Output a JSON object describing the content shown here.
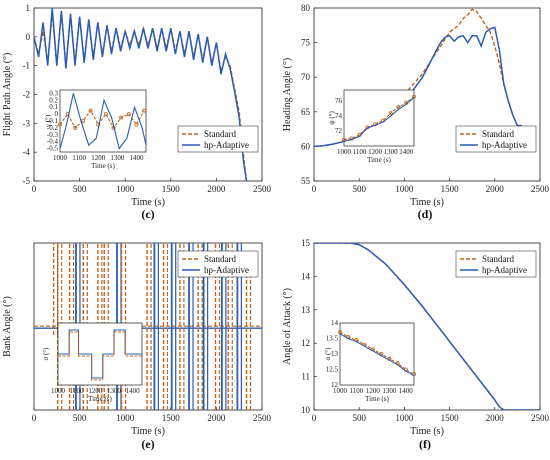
{
  "chart_data": [
    {
      "panel": "(c)",
      "type": "line",
      "xlabel": "Time (s)",
      "ylabel": "Flight Path Angle (°)",
      "xlim": [
        0,
        2500
      ],
      "ylim": [
        -5,
        1
      ],
      "xticks": [
        0,
        500,
        1000,
        1500,
        2000,
        2500
      ],
      "yticks": [
        -5,
        -4,
        -3,
        -2,
        -1,
        0,
        1
      ],
      "legend": "center-right",
      "series": [
        {
          "name": "Standard",
          "color": "#c0651a",
          "style": "dashed",
          "x": [
            0,
            50,
            100,
            150,
            200,
            250,
            300,
            350,
            400,
            450,
            500,
            550,
            600,
            650,
            700,
            750,
            800,
            850,
            900,
            950,
            1000,
            1050,
            1100,
            1150,
            1200,
            1250,
            1300,
            1350,
            1400,
            1450,
            1500,
            1550,
            1600,
            1650,
            1700,
            1750,
            1800,
            1850,
            1900,
            1950,
            2000,
            2050,
            2100,
            2150,
            2200,
            2250,
            2280,
            2300,
            2330
          ],
          "y": [
            0,
            -0.6,
            0.2,
            -0.9,
            0.8,
            -1.0,
            0.9,
            -1.0,
            0.8,
            -0.9,
            0.7,
            -0.8,
            0.6,
            -0.7,
            0.5,
            -0.6,
            0.4,
            -0.5,
            0.3,
            -0.4,
            0.2,
            -0.3,
            0.2,
            -0.3,
            0.3,
            -0.3,
            0.3,
            -0.4,
            0.3,
            -0.4,
            0.3,
            -0.5,
            0.2,
            -0.6,
            0.2,
            -0.7,
            0.1,
            -0.8,
            0.0,
            -0.9,
            -0.2,
            -1.2,
            -0.7,
            -1.0,
            -1.8,
            -2.6,
            -3.6,
            -4.2,
            -5.0
          ]
        },
        {
          "name": "hp-Adaptive",
          "color": "#2b5cb8",
          "style": "solid",
          "x": [
            0,
            50,
            100,
            150,
            200,
            250,
            300,
            350,
            400,
            450,
            500,
            550,
            600,
            650,
            700,
            750,
            800,
            850,
            900,
            950,
            1000,
            1050,
            1100,
            1150,
            1200,
            1250,
            1300,
            1350,
            1400,
            1450,
            1500,
            1550,
            1600,
            1650,
            1700,
            1750,
            1800,
            1850,
            1900,
            1950,
            2000,
            2050,
            2100,
            2150,
            2200,
            2250,
            2280,
            2300,
            2330
          ],
          "y": [
            0,
            -0.7,
            0.5,
            -1.0,
            1.0,
            -1.0,
            0.9,
            -1.1,
            0.8,
            -1.0,
            0.7,
            -0.9,
            0.6,
            -0.8,
            0.5,
            -0.7,
            0.4,
            -0.6,
            0.3,
            -0.5,
            0.2,
            -0.4,
            0.2,
            -0.4,
            0.3,
            -0.4,
            0.3,
            -0.5,
            0.3,
            -0.5,
            0.3,
            -0.6,
            0.2,
            -0.7,
            0.2,
            -0.8,
            0.1,
            -0.9,
            0.0,
            -1.0,
            -0.2,
            -1.3,
            -0.6,
            -1.1,
            -1.9,
            -2.8,
            -3.8,
            -4.4,
            -5.0
          ]
        }
      ],
      "inset": {
        "xlabel": "Time (s)",
        "ylabel": "γ (°)",
        "xlim": [
          1000,
          1450
        ],
        "ylim": [
          -0.55,
          0.35
        ],
        "xticks": [
          1000,
          1100,
          1200,
          1300,
          1400
        ],
        "yticks": [
          -0.5,
          -0.4,
          -0.3,
          -0.2,
          -0.1,
          0,
          0.1,
          0.2,
          0.3
        ],
        "standard": {
          "x": [
            1000,
            1040,
            1080,
            1120,
            1160,
            1200,
            1240,
            1280,
            1320,
            1360,
            1400,
            1440
          ],
          "y": [
            -0.15,
            0.0,
            -0.2,
            -0.1,
            0.05,
            -0.15,
            0.0,
            -0.2,
            -0.05,
            0.0,
            -0.15,
            0.05
          ]
        },
        "adaptive": {
          "x": [
            1000,
            1030,
            1070,
            1110,
            1150,
            1190,
            1230,
            1270,
            1310,
            1350,
            1390,
            1430,
            1450
          ],
          "y": [
            -0.5,
            -0.2,
            0.3,
            -0.1,
            -0.45,
            -0.35,
            0.2,
            -0.05,
            -0.5,
            -0.35,
            0.1,
            -0.2,
            -0.45
          ]
        }
      }
    },
    {
      "panel": "(d)",
      "type": "line",
      "xlabel": "Time (s)",
      "ylabel": "Heading Angle (°)",
      "xlim": [
        0,
        2500
      ],
      "ylim": [
        55,
        80
      ],
      "xticks": [
        0,
        500,
        1000,
        1500,
        2000,
        2500
      ],
      "yticks": [
        55,
        60,
        65,
        70,
        75,
        80
      ],
      "legend": "center-right",
      "series": [
        {
          "name": "Standard",
          "color": "#c0651a",
          "style": "dashed",
          "x": [
            0,
            100,
            200,
            300,
            400,
            500,
            600,
            700,
            800,
            900,
            1000,
            1100,
            1200,
            1300,
            1400,
            1450,
            1500,
            1550,
            1600,
            1650,
            1700,
            1750,
            1800,
            1850,
            1900,
            1950,
            2000,
            2050,
            2100,
            2150,
            2200,
            2250,
            2280,
            2300
          ],
          "y": [
            60,
            60.1,
            60.3,
            60.6,
            61,
            61.5,
            62.2,
            63.2,
            64.5,
            66,
            67.5,
            69,
            70.5,
            72.5,
            74.5,
            75.5,
            76.5,
            77,
            77.5,
            78.5,
            79,
            79.8,
            79.5,
            78.5,
            77.5,
            76.5,
            74.5,
            72,
            69,
            66.5,
            64.5,
            63,
            62.5,
            62.5
          ]
        },
        {
          "name": "hp-Adaptive",
          "color": "#2b5cb8",
          "style": "solid",
          "x": [
            0,
            100,
            200,
            300,
            400,
            500,
            600,
            700,
            800,
            900,
            1000,
            1100,
            1200,
            1300,
            1350,
            1400,
            1450,
            1500,
            1550,
            1600,
            1650,
            1700,
            1750,
            1800,
            1850,
            1900,
            1950,
            2000,
            2050,
            2100,
            2150,
            2200,
            2250,
            2280,
            2300
          ],
          "y": [
            60,
            60.1,
            60.3,
            60.6,
            61,
            61.5,
            62.2,
            63.2,
            64.5,
            66,
            67,
            68.2,
            70,
            72.5,
            73.8,
            75,
            75.8,
            76,
            75.2,
            75.8,
            76,
            75,
            76,
            76,
            74.5,
            76.5,
            77,
            77.2,
            74,
            69,
            66.5,
            64.5,
            63,
            63,
            63
          ]
        }
      ],
      "inset": {
        "xlabel": "Time (s)",
        "ylabel": "ψ (°)",
        "xlim": [
          1000,
          1450
        ],
        "ylim": [
          70,
          77.5
        ],
        "xticks": [
          1000,
          1100,
          1200,
          1300,
          1400
        ],
        "yticks": [
          72,
          74,
          76
        ],
        "standard": {
          "x": [
            1000,
            1050,
            1100,
            1150,
            1200,
            1250,
            1300,
            1350,
            1400,
            1450
          ],
          "y": [
            70.8,
            71.0,
            71.5,
            72.5,
            72.9,
            73.4,
            74.4,
            75.2,
            75.8,
            76.6
          ]
        },
        "adaptive": {
          "x": [
            1000,
            1050,
            1100,
            1150,
            1200,
            1250,
            1300,
            1350,
            1400,
            1450
          ],
          "y": [
            70.6,
            70.9,
            71.3,
            72.4,
            72.8,
            73.2,
            74.0,
            74.9,
            75.6,
            76.5
          ]
        }
      }
    },
    {
      "panel": "(e)",
      "type": "line",
      "xlabel": "Time (s)",
      "ylabel": "Bank Angle (°)",
      "xlim": [
        0,
        2500
      ],
      "legend": "top-right",
      "series": [
        {
          "name": "Standard",
          "color": "#c0651a",
          "style": "dashed"
        },
        {
          "name": "hp-Adaptive",
          "color": "#2b5cb8",
          "style": "solid"
        }
      ],
      "xticks": [
        0,
        500,
        1000,
        1500,
        2000,
        2500
      ],
      "inset": {
        "xlabel": "Time (s)",
        "ylabel": "σ (°)",
        "xlim": [
          1000,
          1450
        ],
        "xticks": [
          1000,
          1100,
          1200,
          1300,
          1400
        ]
      }
    },
    {
      "panel": "(f)",
      "type": "line",
      "xlabel": "Time (s)",
      "ylabel": "Angle of Attack (°)",
      "xlim": [
        0,
        2500
      ],
      "ylim": [
        10,
        15
      ],
      "xticks": [
        0,
        500,
        1000,
        1500,
        2000,
        2500
      ],
      "yticks": [
        10,
        11,
        12,
        13,
        14,
        15
      ],
      "legend": "top-right",
      "series": [
        {
          "name": "Standard",
          "color": "#c0651a",
          "style": "dashed",
          "x": [
            0,
            200,
            400,
            500,
            600,
            800,
            1000,
            1200,
            1400,
            1600,
            1800,
            2000,
            2050,
            2100,
            2200,
            2300,
            2500
          ],
          "y": [
            15,
            15,
            15,
            14.95,
            14.8,
            14.35,
            13.75,
            13.1,
            12.4,
            11.7,
            11.0,
            10.3,
            10.1,
            10,
            10,
            10,
            10
          ]
        },
        {
          "name": "hp-Adaptive",
          "color": "#2b5cb8",
          "style": "solid",
          "x": [
            0,
            200,
            400,
            500,
            600,
            800,
            1000,
            1200,
            1400,
            1600,
            1800,
            2000,
            2050,
            2100,
            2200,
            2300,
            2500
          ],
          "y": [
            15,
            15,
            15,
            14.95,
            14.8,
            14.35,
            13.75,
            13.1,
            12.4,
            11.7,
            11.0,
            10.3,
            10.1,
            10,
            10,
            10,
            10
          ]
        }
      ],
      "inset": {
        "xlabel": "Time (s)",
        "ylabel": "α (°)",
        "xlim": [
          1000,
          1450
        ],
        "ylim": [
          12,
          14
        ],
        "xticks": [
          1000,
          1100,
          1200,
          1300,
          1400
        ],
        "yticks": [
          12,
          12.5,
          13,
          13.5,
          14
        ],
        "standard": {
          "x": [
            1000,
            1050,
            1100,
            1150,
            1200,
            1250,
            1300,
            1350,
            1400,
            1450
          ],
          "y": [
            13.7,
            13.55,
            13.45,
            13.3,
            13.15,
            13.0,
            12.85,
            12.7,
            12.5,
            12.35
          ]
        },
        "adaptive": {
          "x": [
            1000,
            1050,
            1100,
            1150,
            1200,
            1250,
            1300,
            1350,
            1400,
            1450
          ],
          "y": [
            13.65,
            13.5,
            13.4,
            13.25,
            13.1,
            12.95,
            12.8,
            12.65,
            12.45,
            12.3
          ]
        }
      }
    }
  ],
  "bank_bursts": [
    {
      "x": 215,
      "y": [
        -10,
        100
      ],
      "series": "standard"
    },
    {
      "x": 260,
      "y": [
        -100,
        100
      ],
      "series": "standard"
    },
    {
      "x": 390,
      "y": [
        -100,
        100
      ],
      "series": "standard"
    },
    {
      "x": 460,
      "y": [
        -100,
        100
      ],
      "series": "adaptive"
    },
    {
      "x": 540,
      "y": [
        -100,
        100
      ],
      "series": "standard"
    },
    {
      "x": 700,
      "y": [
        -100,
        100
      ],
      "series": "standard"
    },
    {
      "x": 770,
      "y": [
        -100,
        100
      ],
      "series": "standard"
    },
    {
      "x": 910,
      "y": [
        -100,
        100
      ],
      "series": "adaptive"
    },
    {
      "x": 960,
      "y": [
        -100,
        100
      ],
      "series": "standard"
    },
    {
      "x": 1240,
      "y": [
        -100,
        100
      ],
      "series": "standard"
    },
    {
      "x": 1320,
      "y": [
        -100,
        100
      ],
      "series": "adaptive"
    },
    {
      "x": 1420,
      "y": [
        -100,
        100
      ],
      "series": "standard"
    },
    {
      "x": 1510,
      "y": [
        -100,
        100
      ],
      "series": "adaptive"
    },
    {
      "x": 1600,
      "y": [
        -100,
        100
      ],
      "series": "standard"
    },
    {
      "x": 1700,
      "y": [
        -100,
        100
      ],
      "series": "adaptive"
    },
    {
      "x": 1800,
      "y": [
        -100,
        100
      ],
      "series": "standard"
    },
    {
      "x": 1860,
      "y": [
        -100,
        100
      ],
      "series": "adaptive"
    },
    {
      "x": 1990,
      "y": [
        -100,
        100
      ],
      "series": "standard"
    },
    {
      "x": 2060,
      "y": [
        -100,
        100
      ],
      "series": "adaptive"
    },
    {
      "x": 2130,
      "y": [
        -100,
        100
      ],
      "series": "standard"
    },
    {
      "x": 2230,
      "y": [
        -100,
        100
      ],
      "series": "adaptive"
    },
    {
      "x": 2330,
      "y": [
        -100,
        80
      ],
      "series": "standard"
    }
  ]
}
